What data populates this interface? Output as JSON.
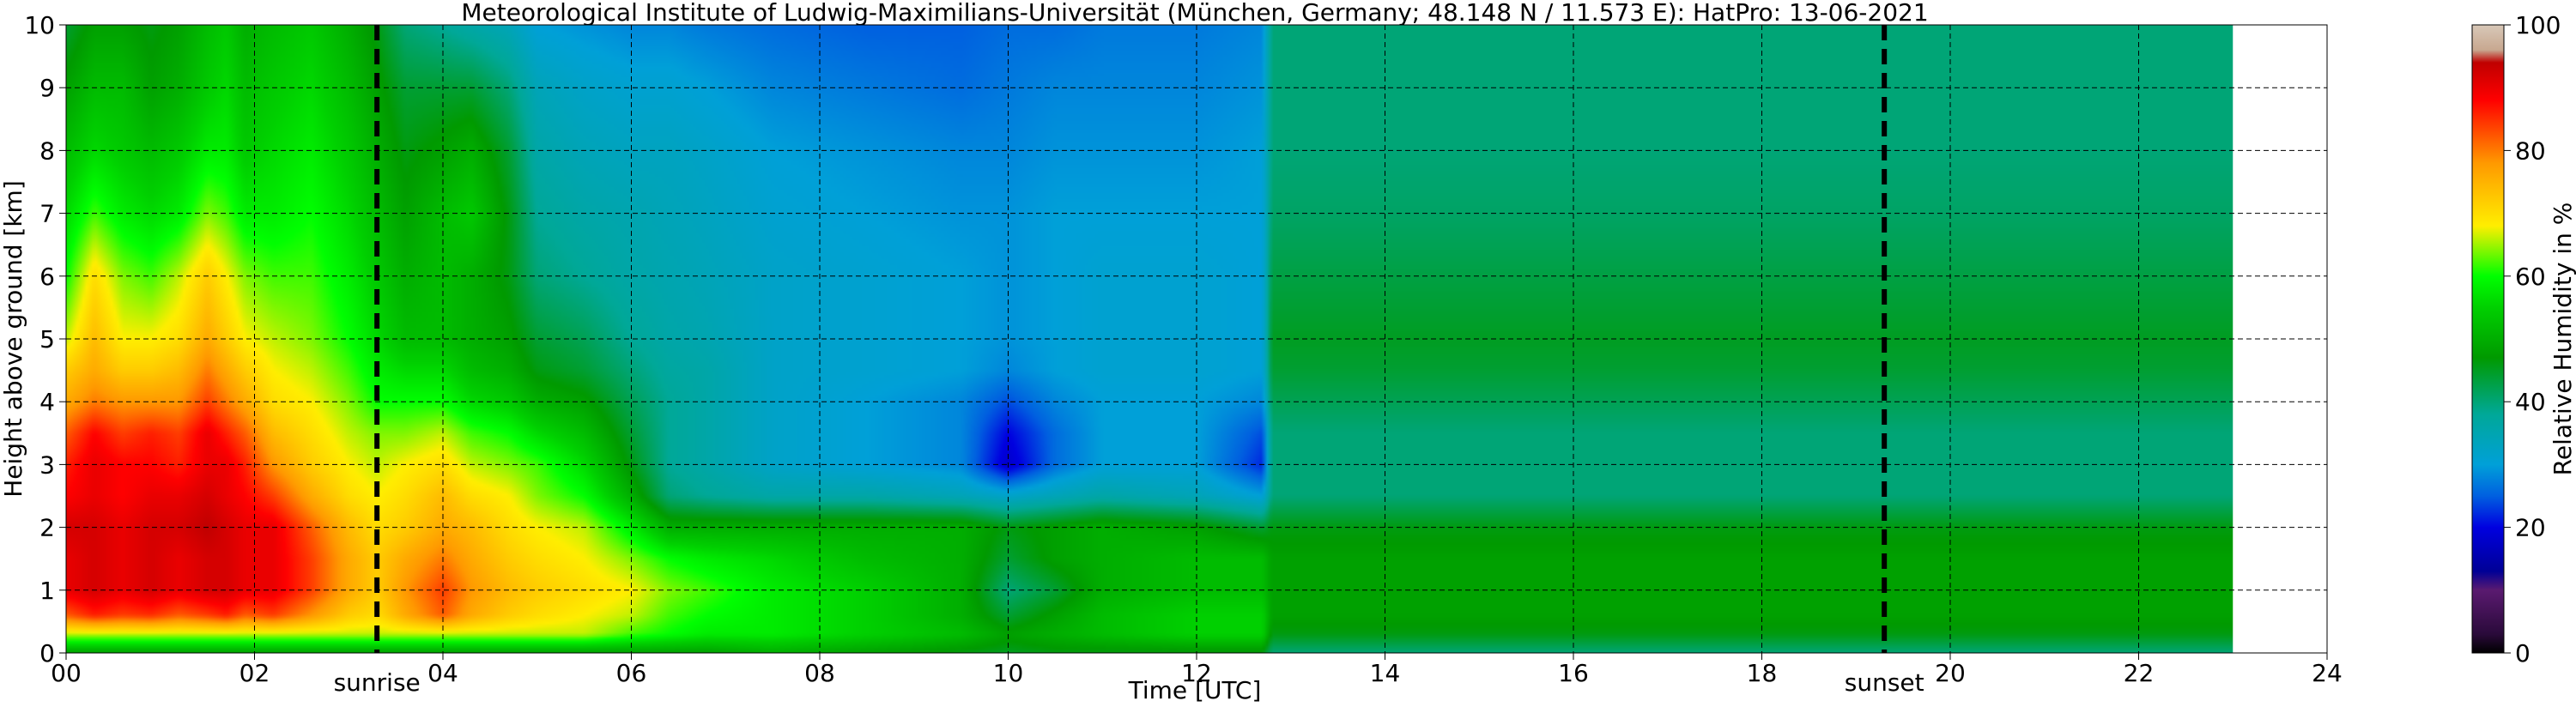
{
  "chart_data": {
    "type": "heatmap",
    "title": "Meteorological Institute of Ludwig-Maximilians-Universität (München, Germany; 48.148 N / 11.573 E):    HatPro: 13-06-2021",
    "xlabel": "Time [UTC]",
    "ylabel": "Height above ground [km]",
    "xlim": [
      0,
      24
    ],
    "ylim": [
      0,
      10
    ],
    "x_ticks": [
      "00",
      "02",
      "04",
      "06",
      "08",
      "10",
      "12",
      "14",
      "16",
      "18",
      "20",
      "22",
      "24"
    ],
    "y_ticks": [
      "0",
      "1",
      "2",
      "3",
      "4",
      "5",
      "6",
      "7",
      "8",
      "9",
      "10"
    ],
    "grid": true,
    "data_end_hour": 23.0,
    "colorbar": {
      "label": "Relative Humidity in %",
      "range": [
        0,
        100
      ],
      "ticks": [
        "0",
        "20",
        "40",
        "60",
        "80",
        "100"
      ],
      "stops": [
        {
          "value": 0,
          "color": "#000000"
        },
        {
          "value": 3,
          "color": "#2a0a3a"
        },
        {
          "value": 10,
          "color": "#5a1a70"
        },
        {
          "value": 13,
          "color": "#000096"
        },
        {
          "value": 20,
          "color": "#0000e0"
        },
        {
          "value": 25,
          "color": "#0060e0"
        },
        {
          "value": 30,
          "color": "#00a0d8"
        },
        {
          "value": 38,
          "color": "#00a898"
        },
        {
          "value": 47,
          "color": "#009a00"
        },
        {
          "value": 55,
          "color": "#00d000"
        },
        {
          "value": 60,
          "color": "#00ff00"
        },
        {
          "value": 68,
          "color": "#ffee00"
        },
        {
          "value": 78,
          "color": "#ff9900"
        },
        {
          "value": 88,
          "color": "#ff0000"
        },
        {
          "value": 94,
          "color": "#c00000"
        },
        {
          "value": 96,
          "color": "#c8a890"
        },
        {
          "value": 100,
          "color": "#d8c8b8"
        }
      ]
    },
    "annotations": [
      {
        "label": "sunrise",
        "x": 3.3,
        "style": "dashed"
      },
      {
        "label": "sunset",
        "x": 19.3,
        "style": "dashed"
      }
    ],
    "rh_time_nodes": [
      0,
      0.3,
      0.6,
      0.9,
      1.2,
      1.5,
      1.7,
      1.9,
      2.2,
      2.6,
      3.0,
      3.3,
      3.6,
      4.0,
      4.3,
      4.7,
      5.0,
      5.5,
      6.0,
      6.4,
      6.8,
      7.5,
      8.5,
      9.5,
      10.0,
      10.5,
      11.0,
      12.0,
      12.7,
      12.8,
      14.0,
      16.0,
      18.0,
      20.0,
      22.0,
      23.0
    ],
    "rh_height_nodes": [
      0,
      0.3,
      0.6,
      1.0,
      1.5,
      2.0,
      2.5,
      3.0,
      3.5,
      4.0,
      4.5,
      5.0,
      6.0,
      7.0,
      8.0,
      9.0,
      10.0
    ],
    "rh_values": [
      [
        48,
        48,
        48,
        48,
        48,
        48,
        48,
        48,
        48,
        48,
        48,
        48,
        48,
        48,
        48,
        48,
        48,
        48,
        48,
        48,
        48,
        50,
        48,
        46,
        45,
        46,
        46,
        46,
        46,
        40,
        40,
        40,
        40,
        40,
        40,
        40
      ],
      [
        66,
        66,
        66,
        66,
        66,
        66,
        66,
        66,
        66,
        66,
        66,
        66,
        66,
        66,
        66,
        66,
        66,
        66,
        62,
        60,
        58,
        58,
        55,
        52,
        48,
        50,
        52,
        55,
        55,
        46,
        46,
        46,
        46,
        46,
        46,
        46
      ],
      [
        82,
        86,
        84,
        85,
        82,
        84,
        86,
        82,
        84,
        78,
        72,
        70,
        76,
        82,
        76,
        72,
        70,
        68,
        66,
        62,
        60,
        58,
        55,
        50,
        44,
        48,
        52,
        55,
        55,
        48,
        48,
        48,
        48,
        48,
        48,
        48
      ],
      [
        90,
        92,
        90,
        92,
        90,
        92,
        92,
        90,
        90,
        84,
        76,
        72,
        78,
        84,
        78,
        74,
        72,
        70,
        68,
        64,
        62,
        58,
        55,
        50,
        40,
        44,
        50,
        52,
        52,
        48,
        48,
        48,
        48,
        48,
        48,
        48
      ],
      [
        90,
        92,
        90,
        92,
        90,
        92,
        92,
        90,
        90,
        84,
        76,
        72,
        76,
        80,
        76,
        72,
        70,
        68,
        64,
        60,
        58,
        56,
        52,
        50,
        44,
        48,
        50,
        52,
        52,
        48,
        48,
        48,
        48,
        48,
        48,
        48
      ],
      [
        92,
        92,
        90,
        92,
        92,
        94,
        92,
        90,
        90,
        82,
        74,
        70,
        72,
        76,
        74,
        70,
        68,
        66,
        58,
        50,
        50,
        50,
        50,
        50,
        46,
        48,
        50,
        48,
        44,
        46,
        46,
        46,
        46,
        46,
        46,
        46
      ],
      [
        88,
        90,
        88,
        90,
        90,
        92,
        90,
        88,
        84,
        76,
        70,
        68,
        70,
        74,
        70,
        68,
        64,
        60,
        50,
        40,
        38,
        36,
        36,
        34,
        32,
        34,
        36,
        34,
        30,
        40,
        40,
        40,
        40,
        40,
        40,
        40
      ],
      [
        86,
        90,
        88,
        88,
        86,
        90,
        90,
        86,
        78,
        72,
        68,
        66,
        68,
        70,
        66,
        64,
        62,
        56,
        46,
        38,
        36,
        32,
        30,
        28,
        18,
        26,
        30,
        30,
        22,
        40,
        40,
        40,
        40,
        40,
        40,
        40
      ],
      [
        82,
        88,
        84,
        86,
        84,
        90,
        86,
        82,
        74,
        70,
        66,
        64,
        64,
        66,
        62,
        60,
        56,
        52,
        44,
        38,
        36,
        32,
        30,
        28,
        20,
        26,
        30,
        30,
        24,
        40,
        40,
        40,
        40,
        40,
        40,
        40
      ],
      [
        76,
        80,
        78,
        78,
        78,
        84,
        80,
        76,
        70,
        68,
        64,
        60,
        60,
        60,
        56,
        54,
        50,
        48,
        42,
        38,
        36,
        32,
        30,
        28,
        24,
        28,
        30,
        30,
        28,
        42,
        42,
        42,
        42,
        42,
        42,
        42
      ],
      [
        72,
        76,
        72,
        72,
        74,
        80,
        76,
        72,
        68,
        66,
        62,
        58,
        56,
        56,
        52,
        50,
        46,
        44,
        40,
        37,
        36,
        32,
        31,
        30,
        28,
        30,
        31,
        31,
        30,
        44,
        44,
        44,
        44,
        44,
        44,
        44
      ],
      [
        66,
        74,
        68,
        68,
        70,
        76,
        72,
        68,
        66,
        64,
        60,
        56,
        52,
        52,
        50,
        48,
        44,
        42,
        38,
        36,
        35,
        32,
        31,
        30,
        29,
        30,
        31,
        31,
        30,
        45,
        45,
        45,
        45,
        45,
        45,
        45
      ],
      [
        60,
        70,
        64,
        62,
        66,
        72,
        68,
        64,
        62,
        62,
        58,
        54,
        50,
        52,
        50,
        46,
        40,
        38,
        36,
        35,
        34,
        32,
        31,
        30,
        29,
        30,
        31,
        31,
        30,
        43,
        43,
        43,
        43,
        43,
        43,
        43
      ],
      [
        56,
        62,
        58,
        56,
        58,
        64,
        62,
        58,
        58,
        60,
        56,
        52,
        48,
        52,
        54,
        46,
        38,
        36,
        35,
        34,
        33,
        31,
        30,
        29,
        29,
        30,
        30,
        30,
        30,
        41,
        41,
        41,
        41,
        41,
        41,
        41
      ],
      [
        52,
        56,
        54,
        52,
        54,
        58,
        58,
        54,
        56,
        58,
        54,
        50,
        46,
        48,
        50,
        44,
        36,
        34,
        33,
        33,
        32,
        30,
        29,
        28,
        28,
        29,
        29,
        29,
        30,
        40,
        40,
        40,
        40,
        40,
        40,
        40
      ],
      [
        48,
        52,
        52,
        48,
        50,
        54,
        56,
        52,
        54,
        56,
        52,
        48,
        44,
        44,
        44,
        40,
        34,
        32,
        31,
        31,
        30,
        28,
        27,
        26,
        27,
        28,
        28,
        28,
        29,
        40,
        40,
        40,
        40,
        40,
        40,
        40
      ],
      [
        44,
        48,
        48,
        46,
        48,
        52,
        54,
        50,
        52,
        54,
        50,
        46,
        40,
        38,
        36,
        34,
        30,
        29,
        28,
        28,
        27,
        26,
        25,
        25,
        26,
        26,
        27,
        27,
        28,
        40,
        40,
        40,
        40,
        40,
        40,
        40
      ]
    ]
  }
}
